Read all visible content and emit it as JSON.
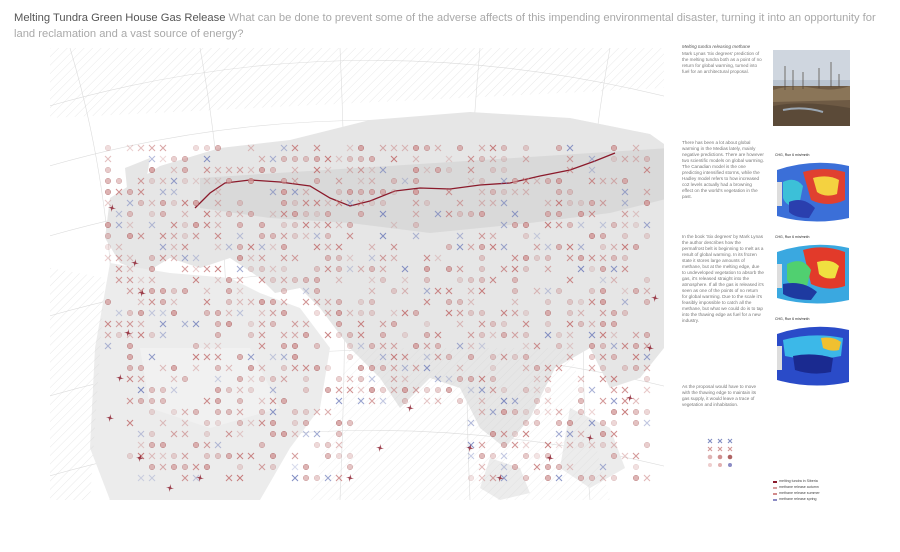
{
  "title": {
    "lead": "Melting Tundra Green House Gas Release",
    "rest": " What can be done to prevent some of the adverse affects of this impending environmental disaster, turning it into an opportunity for land reclamation and a vast source of energy?"
  },
  "sidebar": {
    "caption_title": "Melting tundra releasing methane",
    "caption_text": "Mark Lynas 'Six degrees' prediction of the melting tundra both as a point of no return for global warming, turned into fuel for an architectural proposal.",
    "paragraph_1": "There has been a lot about global warming in the Medias lately, mainly negative predictions. There are however two scientific models on global warming. The Canadian model is the one predicting intensified storms, while the Hadley model refers to how increased co2 levels actually had a browning effect on the world's vegetation in the past.",
    "paragraph_2": "In the book 'Six degrees' by Mark Lynas the author describes how the permafrost belt is beginning to melt as a result of global warming. In its frozen state it stores large amounts of methane, but at the melting edge, due to undeveloped vegetation to absorb the gas, it's released straight into the atmosphere. If all the gas is released it's seen as one of the points of no return for global warming. Due to the scale it's feasibly impossible to catch all the methane, but what we could do is to tap into the thawing edge as fuel for a new industry.",
    "paragraph_3": "As the proposal would have to move with the thawing edge to maintain its gas supply, it would leave a trace of vegetation and inhabitation.",
    "mini_maps": [
      "CHG, Run 6 min/mnth",
      "CHG, Run 6 min/mnth",
      "CHG, Run 6 min/mnth"
    ],
    "map_legend_labels": [
      "",
      "",
      "",
      ""
    ],
    "symbol_legend": [
      {
        "label": "melting tundra in Siberia",
        "color": "#8b1a2b"
      },
      {
        "label": "methane release autumn",
        "color": "#d9a0a0"
      },
      {
        "label": "methane release summer",
        "color": "#d28b8b"
      },
      {
        "label": "methane release spring",
        "color": "#8b8bc4"
      }
    ]
  },
  "colors": {
    "title_lead": "#555555",
    "title_rest": "#a9a9a9",
    "tundra_line": "#8b1a2b",
    "marker_red": "#c06a6a",
    "marker_blue": "#6a78b8",
    "landmass": "#e6e6e6"
  }
}
